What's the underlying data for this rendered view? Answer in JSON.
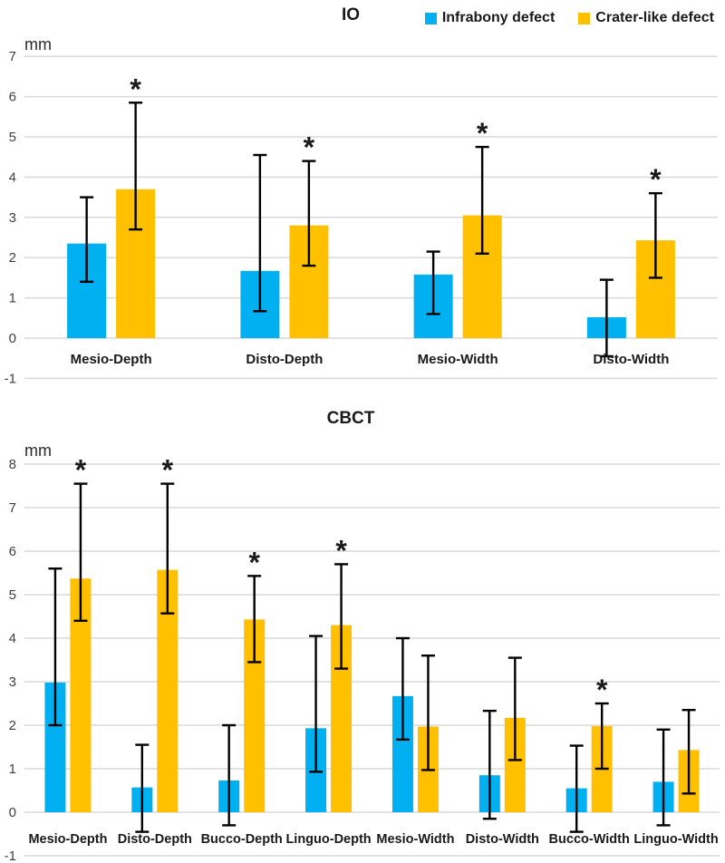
{
  "legend": {
    "items": [
      {
        "label": "Infrabony defect",
        "color": "#00B0F0"
      },
      {
        "label": "Crater-like defect",
        "color": "#FFC000"
      }
    ]
  },
  "chart_data": [
    {
      "type": "bar",
      "title": "IO",
      "ylabel": "mm",
      "ylim": [
        -1,
        7
      ],
      "grid": true,
      "legend_position": "top-right",
      "categories": [
        "Mesio-Depth",
        "Disto-Depth",
        "Mesio-Width",
        "Disto-Width"
      ],
      "series": [
        {
          "name": "Infrabony defect",
          "color": "#00B0F0",
          "values": [
            2.35,
            1.67,
            1.58,
            0.52
          ],
          "whisker_hi": [
            3.5,
            4.55,
            2.15,
            1.45
          ],
          "whisker_lo": [
            1.4,
            0.67,
            0.6,
            -0.45
          ]
        },
        {
          "name": "Crater-like defect",
          "color": "#FFC000",
          "values": [
            3.7,
            2.8,
            3.05,
            2.43
          ],
          "whisker_hi": [
            5.85,
            4.4,
            4.75,
            3.6
          ],
          "whisker_lo": [
            2.7,
            1.8,
            2.1,
            1.5
          ],
          "significant": [
            true,
            true,
            true,
            true
          ]
        }
      ],
      "annotations": {
        "significance_marker": "*"
      }
    },
    {
      "type": "bar",
      "title": "CBCT",
      "ylabel": "mm",
      "ylim": [
        -1,
        8
      ],
      "grid": true,
      "categories": [
        "Mesio-Depth",
        "Disto-Depth",
        "Bucco-Depth",
        "Linguo-Depth",
        "Mesio-Width",
        "Disto-Width",
        "Bucco-Width",
        "Linguo-Width"
      ],
      "series": [
        {
          "name": "Infrabony defect",
          "color": "#00B0F0",
          "values": [
            2.98,
            0.57,
            0.73,
            1.93,
            2.67,
            0.85,
            0.55,
            0.7
          ],
          "whisker_hi": [
            5.6,
            1.55,
            2.0,
            4.05,
            4.0,
            2.33,
            1.53,
            1.9
          ],
          "whisker_lo": [
            2.0,
            -0.45,
            -0.3,
            0.93,
            1.67,
            -0.15,
            -0.45,
            -0.3
          ]
        },
        {
          "name": "Crater-like defect",
          "color": "#FFC000",
          "values": [
            5.37,
            5.57,
            4.43,
            4.3,
            1.97,
            2.17,
            1.98,
            1.43
          ],
          "whisker_hi": [
            7.55,
            7.55,
            5.43,
            5.7,
            3.6,
            3.55,
            2.5,
            2.35
          ],
          "whisker_lo": [
            4.4,
            4.57,
            3.45,
            3.3,
            0.97,
            1.2,
            1.0,
            0.43
          ],
          "significant": [
            true,
            true,
            true,
            true,
            false,
            false,
            true,
            false
          ]
        }
      ],
      "annotations": {
        "significance_marker": "*"
      }
    }
  ]
}
